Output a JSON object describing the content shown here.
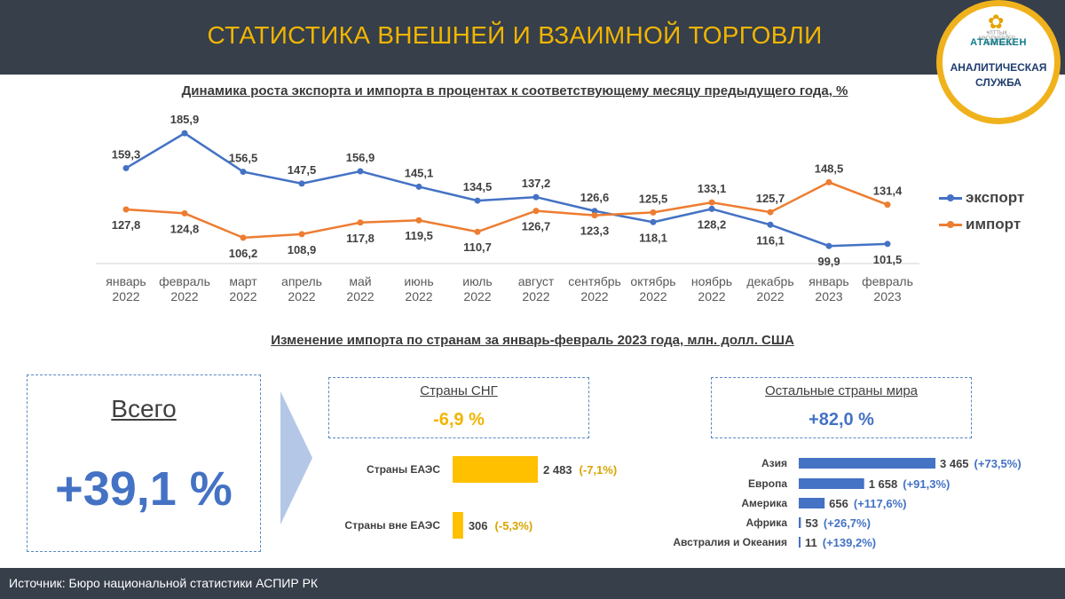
{
  "header": {
    "title": "СТАТИСТИКА ВНЕШНЕЙ И ВЗАИМНОЙ ТОРГОВЛИ"
  },
  "logo": {
    "small_text": "ҰЛТТЫҚ · КӘСІПКЕРЛЕР · ПАЛАТАСЫ",
    "brand": "АТАМЕКЕН",
    "service_line1": "АНАЛИТИЧЕСКАЯ",
    "service_line2": "СЛУЖБА",
    "ring_color": "#f0b21c"
  },
  "footer": {
    "source": "Источник: Бюро национальной  статистики  АСПИР РК"
  },
  "totals": {
    "label": "Всего",
    "value": "+39,1 %"
  },
  "cis_box": {
    "title": "Страны СНГ",
    "value": "-6,9 %"
  },
  "world_box": {
    "title": "Остальные страны мира",
    "value": "+82,0 %"
  },
  "colors": {
    "header_bg": "#363f4a",
    "title_yellow": "#f2b500",
    "export_blue": "#4472c4",
    "import_orange": "#ed7d31",
    "bar_yellow": "#ffc000",
    "bar_blue": "#4472c4",
    "change_orange": "#d9a400",
    "change_blue": "#4472c4"
  },
  "chart_data": [
    {
      "type": "line",
      "title": "Динамика роста экспорта и импорта в процентах к соответствующему месяцу предыдущего года, %",
      "categories": [
        [
          "январь",
          "2022"
        ],
        [
          "февраль",
          "2022"
        ],
        [
          "март",
          "2022"
        ],
        [
          "апрель",
          "2022"
        ],
        [
          "май",
          "2022"
        ],
        [
          "июнь",
          "2022"
        ],
        [
          "июль",
          "2022"
        ],
        [
          "август",
          "2022"
        ],
        [
          "сентябрь",
          "2022"
        ],
        [
          "октябрь",
          "2022"
        ],
        [
          "ноябрь",
          "2022"
        ],
        [
          "декабрь",
          "2022"
        ],
        [
          "январь",
          "2023"
        ],
        [
          "февраль",
          "2023"
        ]
      ],
      "series": [
        {
          "name": "экспорт",
          "color": "#4472c4",
          "values": [
            159.3,
            185.9,
            156.5,
            147.5,
            156.9,
            145.1,
            134.5,
            137.2,
            126.6,
            118.1,
            128.2,
            116.1,
            99.9,
            101.5
          ],
          "labels": [
            "159,3",
            "185,9",
            "156,5",
            "147,5",
            "156,9",
            "145,1",
            "134,5",
            "137,2",
            "126,6",
            "118,1",
            "128,2",
            "116,1",
            "99,9",
            "101,5"
          ]
        },
        {
          "name": "импорт",
          "color": "#ed7d31",
          "values": [
            127.8,
            124.8,
            106.2,
            108.9,
            117.8,
            119.5,
            110.7,
            126.7,
            123.3,
            125.5,
            133.1,
            125.7,
            148.5,
            131.4
          ],
          "labels": [
            "127,8",
            "124,8",
            "106,2",
            "108,9",
            "117,8",
            "119,5",
            "110,7",
            "126,7",
            "123,3",
            "125,5",
            "133,1",
            "125,7",
            "148,5",
            "131,4"
          ]
        }
      ],
      "legend": "right",
      "grid": false
    },
    {
      "type": "bar",
      "orientation": "horizontal",
      "title": "Изменение импорта по странам за январь-февраль 2023 года, млн. долл. США",
      "group": "Страны СНГ",
      "categories": [
        "Страны ЕАЭС",
        "Страны вне ЕАЭС"
      ],
      "values": [
        2483,
        306
      ],
      "value_labels": [
        "2 483",
        "306"
      ],
      "changes": [
        "(-7,1%)",
        "(-5,3%)"
      ],
      "color": "#ffc000"
    },
    {
      "type": "bar",
      "orientation": "horizontal",
      "group": "Остальные страны мира",
      "categories": [
        "Азия",
        "Европа",
        "Америка",
        "Африка",
        "Австралия и Океания"
      ],
      "values": [
        3465,
        1658,
        656,
        53,
        11
      ],
      "value_labels": [
        "3 465",
        "1 658",
        "656",
        "53",
        "11"
      ],
      "changes": [
        "(+73,5%)",
        "(+91,3%)",
        "(+117,6%)",
        "(+26,7%)",
        "(+139,2%)"
      ],
      "color": "#4472c4"
    }
  ]
}
